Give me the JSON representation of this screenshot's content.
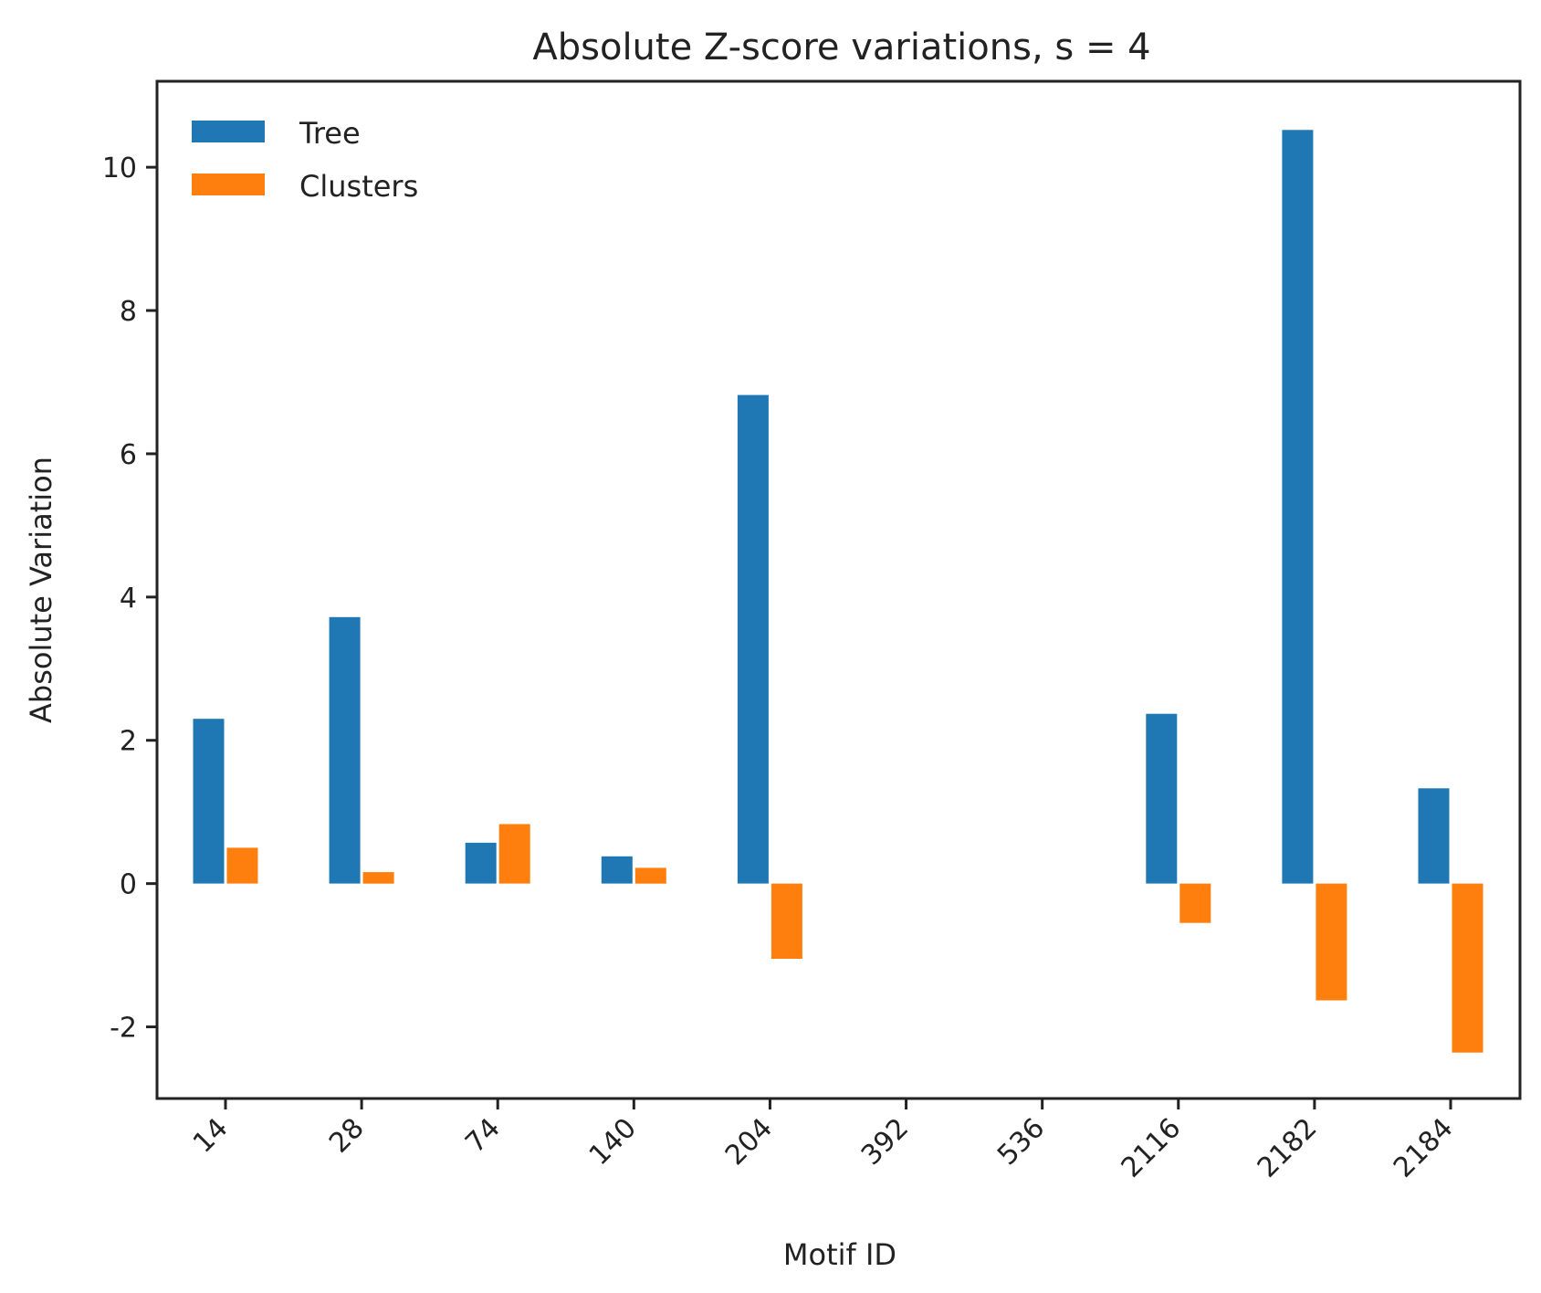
{
  "chart_data": {
    "type": "bar",
    "title": "Absolute Z-score variations, s = 4",
    "xlabel": "Motif ID",
    "ylabel": "Absolute Variation",
    "categories": [
      "14",
      "28",
      "74",
      "140",
      "204",
      "392",
      "536",
      "2116",
      "2182",
      "2184"
    ],
    "series": [
      {
        "name": "Tree",
        "color": "#1f77b4",
        "values": [
          2.3,
          3.72,
          0.57,
          0.38,
          6.82,
          0,
          0,
          2.37,
          10.52,
          1.33
        ]
      },
      {
        "name": "Clusters",
        "color": "#ff7f0e",
        "values": [
          0.5,
          0.16,
          0.83,
          0.22,
          -1.05,
          0,
          0,
          -0.55,
          -1.63,
          -2.36
        ]
      }
    ],
    "ylim": [
      -3,
      11.2
    ],
    "yticks": [
      -2,
      0,
      2,
      4,
      6,
      8,
      10
    ],
    "ytick_labels": [
      "-2",
      "0",
      "2",
      "4",
      "6",
      "8",
      "10"
    ],
    "legend_position": "top-left",
    "grid": false
  }
}
